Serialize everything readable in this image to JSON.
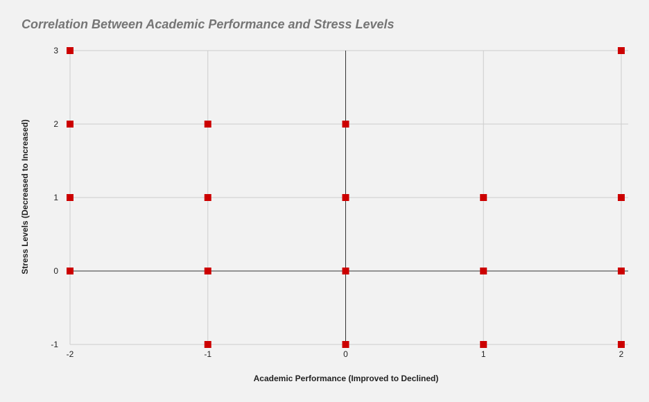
{
  "chart_data": {
    "type": "scatter",
    "title": "Correlation Between Academic Performance and Stress Levels",
    "xlabel": "Academic Performance (Improved to Declined)",
    "ylabel": "Stress Levels (Decreased to Increased)",
    "xlim": [
      -2,
      2
    ],
    "ylim": [
      -1,
      3
    ],
    "x_ticks": [
      -2,
      -1,
      0,
      1,
      2
    ],
    "y_ticks": [
      -1,
      0,
      1,
      2,
      3
    ],
    "grid": true,
    "marker": "square",
    "colors": {
      "marker": "#cc0000",
      "grid": "#cccccc",
      "zero_line": "#333333",
      "background": "#f2f2f2",
      "title": "#757575"
    },
    "points": [
      {
        "x": -2,
        "y": 3
      },
      {
        "x": 2,
        "y": 3
      },
      {
        "x": -2,
        "y": 2
      },
      {
        "x": -1,
        "y": 2
      },
      {
        "x": 0,
        "y": 2
      },
      {
        "x": -2,
        "y": 1
      },
      {
        "x": -1,
        "y": 1
      },
      {
        "x": 0,
        "y": 1
      },
      {
        "x": 1,
        "y": 1
      },
      {
        "x": 2,
        "y": 1
      },
      {
        "x": -2,
        "y": 0
      },
      {
        "x": -1,
        "y": 0
      },
      {
        "x": 0,
        "y": 0
      },
      {
        "x": 1,
        "y": 0
      },
      {
        "x": 2,
        "y": 0
      },
      {
        "x": -1,
        "y": -1
      },
      {
        "x": 0,
        "y": -1
      },
      {
        "x": 1,
        "y": -1
      },
      {
        "x": 2,
        "y": -1
      }
    ]
  }
}
